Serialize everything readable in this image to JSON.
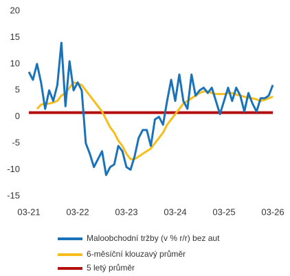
{
  "chart_data": {
    "type": "line",
    "categories": [
      "03-21",
      null,
      null,
      null,
      null,
      null,
      null,
      null,
      null,
      null,
      null,
      null,
      "03-22",
      null,
      null,
      null,
      null,
      null,
      null,
      null,
      null,
      null,
      null,
      null,
      "03-23",
      null,
      null,
      null,
      null,
      null,
      null,
      null,
      null,
      null,
      null,
      null,
      "03-24",
      null,
      null,
      null,
      null,
      null,
      null,
      null,
      null,
      null,
      null,
      null,
      "03-25",
      null,
      null,
      null,
      null,
      null,
      null,
      null,
      null,
      null,
      null,
      null,
      "03-26"
    ],
    "ylim": [
      -15,
      20
    ],
    "yticks": [
      -15,
      -10,
      -5,
      0,
      5,
      10,
      15,
      20
    ],
    "legend": "bottom",
    "series": [
      {
        "name": "Maloobchodní tržby (v % r/r) bez aut",
        "color": "#1a73b8",
        "values": [
          8.5,
          7,
          10,
          6.5,
          1.5,
          5,
          3,
          6,
          14,
          2,
          10.5,
          5,
          6.5,
          5,
          -5,
          -7,
          -9.5,
          -8,
          -6.5,
          -11,
          -9.5,
          -9,
          -5.5,
          -6.5,
          -9.5,
          -10,
          -7.5,
          -4,
          -2.5,
          -2.5,
          -5.5,
          -0.5,
          0,
          -1.5,
          3,
          7,
          3,
          8,
          3,
          1.5,
          8,
          4,
          5,
          5.5,
          4.5,
          5.5,
          3,
          0.5,
          3,
          5.5,
          3,
          5.5,
          4,
          1,
          4.5,
          2.5,
          1,
          3.5,
          3.5,
          4,
          6
        ]
      },
      {
        "name": "6-měsíční klouzavý průměr",
        "color": "#f7bd1a",
        "values": [
          null,
          null,
          1.5,
          2.3,
          2.5,
          2.5,
          2.7,
          3,
          4,
          4.5,
          5.5,
          6.5,
          6.3,
          6,
          5,
          4,
          3,
          2,
          1,
          -0.5,
          -2,
          -3,
          -4.5,
          -5.5,
          -7,
          -8,
          -8,
          -7.5,
          -7,
          -6.5,
          -6,
          -5,
          -4,
          -3,
          -1.5,
          -0.5,
          0.5,
          1.5,
          2.5,
          3,
          3.5,
          4,
          4.5,
          4.8,
          4.8,
          4.5,
          4.3,
          4.3,
          4.3,
          4.5,
          4.5,
          4.2,
          4,
          3.8,
          3.6,
          3.5,
          3.3,
          3,
          3.2,
          3.5,
          3.8
        ]
      },
      {
        "name": "5 letý průměr",
        "color": "#b30f0f",
        "values": [
          0.8,
          0.8,
          0.8,
          0.8,
          0.8,
          0.8,
          0.8,
          0.8,
          0.8,
          0.8,
          0.8,
          0.8,
          0.8,
          0.8,
          0.8,
          0.8,
          0.8,
          0.8,
          0.8,
          0.8,
          0.8,
          0.8,
          0.8,
          0.8,
          0.8,
          0.8,
          0.8,
          0.8,
          0.8,
          0.8,
          0.8,
          0.8,
          0.8,
          0.8,
          0.8,
          0.8,
          0.8,
          0.8,
          0.8,
          0.8,
          0.8,
          0.8,
          0.8,
          0.8,
          0.8,
          0.8,
          0.8,
          0.8,
          0.8,
          0.8,
          0.8,
          0.8,
          0.8,
          0.8,
          0.8,
          0.8,
          0.8,
          0.8,
          0.8,
          0.8,
          0.8
        ]
      }
    ]
  }
}
